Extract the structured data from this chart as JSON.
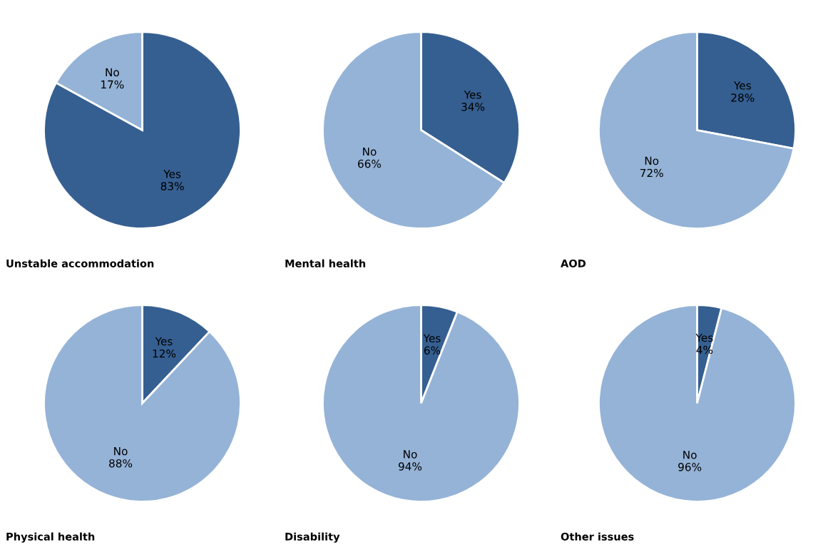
{
  "chart_data": [
    {
      "type": "pie",
      "title": "Unstable accommodation",
      "categories": [
        "Yes",
        "No"
      ],
      "values": [
        83,
        17
      ],
      "value_labels": [
        "83%",
        "17%"
      ],
      "colors": [
        "#365f91",
        "#95b3d7"
      ]
    },
    {
      "type": "pie",
      "title": "Mental health",
      "categories": [
        "Yes",
        "No"
      ],
      "values": [
        34,
        66
      ],
      "value_labels": [
        "34%",
        "66%"
      ],
      "colors": [
        "#365f91",
        "#95b3d7"
      ]
    },
    {
      "type": "pie",
      "title": "AOD",
      "categories": [
        "Yes",
        "No"
      ],
      "values": [
        28,
        72
      ],
      "value_labels": [
        "28%",
        "72%"
      ],
      "colors": [
        "#365f91",
        "#95b3d7"
      ]
    },
    {
      "type": "pie",
      "title": "Physical health",
      "categories": [
        "Yes",
        "No"
      ],
      "values": [
        12,
        88
      ],
      "value_labels": [
        "12%",
        "88%"
      ],
      "colors": [
        "#365f91",
        "#95b3d7"
      ]
    },
    {
      "type": "pie",
      "title": "Disability",
      "categories": [
        "Yes",
        "No"
      ],
      "values": [
        6,
        94
      ],
      "value_labels": [
        "6%",
        "94%"
      ],
      "colors": [
        "#365f91",
        "#95b3d7"
      ]
    },
    {
      "type": "pie",
      "title": "Other issues",
      "categories": [
        "Yes",
        "No"
      ],
      "values": [
        4,
        96
      ],
      "value_labels": [
        "4%",
        "96%"
      ],
      "colors": [
        "#365f91",
        "#95b3d7"
      ]
    }
  ]
}
